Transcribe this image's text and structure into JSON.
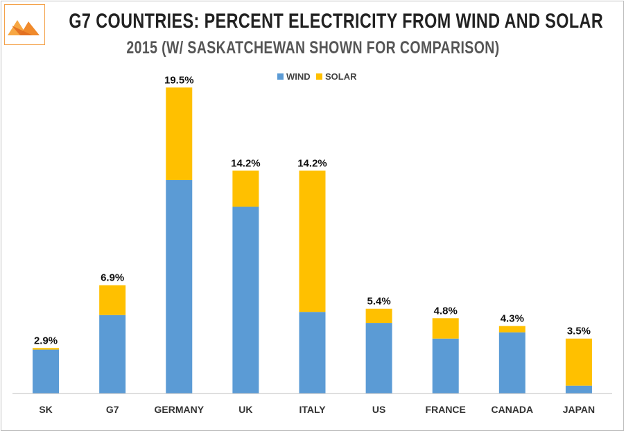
{
  "chart_data": {
    "type": "bar",
    "stacked": true,
    "title": "G7 COUNTRIES: PERCENT ELECTRICITY FROM WIND AND SOLAR",
    "subtitle": "2015 (W/ SASKATCHEWAN SHOWN FOR COMPARISON)",
    "categories": [
      "SK",
      "G7",
      "GERMANY",
      "UK",
      "ITALY",
      "US",
      "FRANCE",
      "CANADA",
      "JAPAN"
    ],
    "series": [
      {
        "name": "WIND",
        "color": "#5b9bd5",
        "values": [
          2.8,
          5.0,
          13.6,
          11.9,
          5.2,
          4.5,
          3.5,
          3.9,
          0.5
        ]
      },
      {
        "name": "SOLAR",
        "color": "#ffc000",
        "values": [
          0.1,
          1.9,
          5.9,
          2.3,
          9.0,
          0.9,
          1.3,
          0.4,
          3.0
        ]
      }
    ],
    "totals": [
      "2.9%",
      "6.9%",
      "19.5%",
      "14.2%",
      "14.2%",
      "5.4%",
      "4.8%",
      "4.3%",
      "3.5%"
    ],
    "ylim": [
      0,
      20
    ],
    "legend_position": "top-center"
  },
  "logo": {
    "name": "triangle-logo",
    "colors": [
      "#f7941d",
      "#e8762b"
    ]
  }
}
